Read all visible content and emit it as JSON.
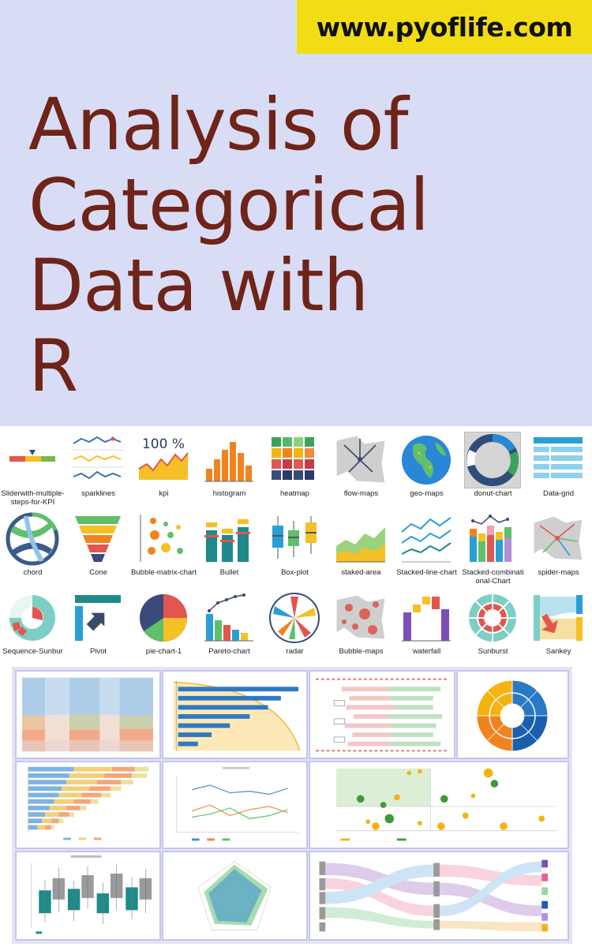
{
  "header": {
    "site_url": "www.pyoflife.com",
    "title_lines": [
      "Analysis of",
      "Categorical",
      "Data with",
      "R"
    ]
  },
  "colors": {
    "hero_background": "#d9dcf5",
    "title": "#6e2418",
    "url_badge": "#f2dc14",
    "dashboard_frame": "#c5c5ee"
  },
  "chart_gallery": {
    "items": [
      {
        "label": "Sliderwith-multiple-steps-for-KPI",
        "icon": "slider-kpi-icon"
      },
      {
        "label": "sparklines",
        "icon": "sparklines-icon"
      },
      {
        "label": "kpi",
        "icon": "kpi-icon"
      },
      {
        "label": "histogram",
        "icon": "histogram-icon"
      },
      {
        "label": "heatmap",
        "icon": "heatmap-icon"
      },
      {
        "label": "flow-maps",
        "icon": "flow-maps-icon"
      },
      {
        "label": "geo-maps",
        "icon": "geo-maps-icon"
      },
      {
        "label": "donut-chart",
        "icon": "donut-chart-icon",
        "selected": true
      },
      {
        "label": "Data-grid",
        "icon": "data-grid-icon"
      },
      {
        "label": "chord",
        "icon": "chord-icon"
      },
      {
        "label": "Cone",
        "icon": "cone-icon"
      },
      {
        "label": "Bubble-matrix-chart",
        "icon": "bubble-matrix-icon"
      },
      {
        "label": "Bullet",
        "icon": "bullet-icon"
      },
      {
        "label": "Box-plot",
        "icon": "box-plot-icon"
      },
      {
        "label": "staked-area",
        "icon": "stacked-area-icon"
      },
      {
        "label": "Stacked-line-chart",
        "icon": "stacked-line-icon"
      },
      {
        "label": "Stacked-combinational-Chart",
        "icon": "stacked-combo-icon"
      },
      {
        "label": "spider-maps",
        "icon": "spider-maps-icon"
      },
      {
        "label": "Sequence-Sunbur",
        "icon": "sequence-sunburst-icon"
      },
      {
        "label": "Pivot",
        "icon": "pivot-icon"
      },
      {
        "label": "pie-chart-1",
        "icon": "pie-chart-icon"
      },
      {
        "label": "Pareto-chart",
        "icon": "pareto-chart-icon"
      },
      {
        "label": "radar",
        "icon": "radar-icon"
      },
      {
        "label": "Bubble-maps",
        "icon": "bubble-maps-icon"
      },
      {
        "label": "waterfall",
        "icon": "waterfall-icon"
      },
      {
        "label": "Sunburst",
        "icon": "sunburst-icon"
      },
      {
        "label": "Sankey",
        "icon": "sankey-icon"
      }
    ],
    "kpi_text": "100 %"
  },
  "dashboards": [
    {
      "name": "parallel-sets-panel"
    },
    {
      "name": "horizontal-bar-panel"
    },
    {
      "name": "dumbbell-rows-panel"
    },
    {
      "name": "sunburst-panel"
    },
    {
      "name": "stacked-hbar-panel"
    },
    {
      "name": "line-chart-panel"
    },
    {
      "name": "quadrant-bubble-panel"
    },
    {
      "name": "boxplot-panel"
    },
    {
      "name": "radar-panel"
    },
    {
      "name": "sankey-panel"
    }
  ]
}
